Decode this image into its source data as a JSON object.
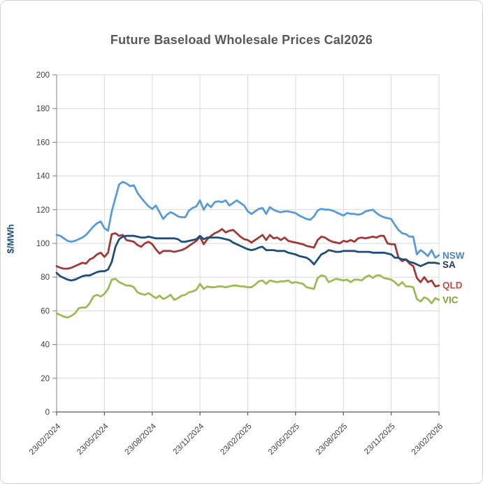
{
  "card": {
    "title": "Future Baseload Wholesale Prices Cal2026"
  },
  "y_axis": {
    "label": "$/MWh",
    "ticks": [
      0,
      20,
      40,
      60,
      80,
      100,
      120,
      140,
      160,
      180,
      200
    ]
  },
  "x_axis": {
    "tick_labels": [
      "23/02/2024",
      "23/05/2024",
      "23/08/2024",
      "23/11/2024",
      "23/02/2025",
      "23/05/2025",
      "23/08/2025",
      "23/11/2025",
      "23/02/2026"
    ],
    "tick_weeks": [
      0,
      13,
      26,
      39,
      52,
      65,
      78,
      91,
      104
    ]
  },
  "colors": {
    "grid": "#d9d9d9",
    "axis": "#808080",
    "tick_text": "#404040",
    "title_text": "#595959",
    "border": "#d9d9d9"
  },
  "chart_data": {
    "type": "line",
    "title": "Future Baseload Wholesale Prices Cal2026",
    "xlabel": "",
    "ylabel": "$/MWh",
    "ylim": [
      0,
      200
    ],
    "grid": "on",
    "legend_position": "right-end-of-line-labels",
    "x_description": "weekly data points from 23/02/2024 to 23/02/2026 (105 points)",
    "x_tick_labels": [
      "23/02/2024",
      "23/05/2024",
      "23/08/2024",
      "23/11/2024",
      "23/02/2025",
      "23/05/2025",
      "23/08/2025",
      "23/11/2025",
      "23/02/2026"
    ],
    "series": [
      {
        "name": "NSW",
        "color": "#5B9BD5",
        "label_color": "#4A86C6",
        "values": [
          105,
          104.5,
          103,
          101.5,
          101,
          101.5,
          102.5,
          103.5,
          105,
          107.5,
          110,
          112,
          113,
          109,
          107.5,
          119,
          127,
          135,
          136.5,
          135.5,
          134,
          134.5,
          130,
          127,
          124.5,
          122,
          120.5,
          122.5,
          118.5,
          114.5,
          117,
          118.5,
          117.5,
          116,
          115.5,
          115.5,
          119.5,
          121,
          122,
          125.5,
          120,
          123.5,
          121.5,
          124.5,
          125,
          124.5,
          125.5,
          122.5,
          124,
          125.5,
          124,
          122.5,
          119,
          117.5,
          119,
          120.5,
          121,
          117.5,
          121.5,
          120,
          119,
          118.5,
          119,
          119,
          118.5,
          118,
          116.5,
          115.5,
          114.5,
          114,
          116,
          119.5,
          120.5,
          120,
          120,
          119.5,
          118.5,
          117.5,
          116.5,
          118,
          117.5,
          117.5,
          117,
          117.5,
          119,
          119.5,
          120,
          118,
          116.5,
          115.5,
          115,
          114.5,
          111,
          108,
          106,
          105.5,
          104,
          104,
          93.5,
          96,
          94.5,
          92.5,
          96,
          91.5,
          93
        ]
      },
      {
        "name": "SA",
        "color": "#1F4E79",
        "label_color": "#1F3864",
        "values": [
          82.5,
          80.5,
          79.5,
          78.5,
          78,
          78.5,
          79.5,
          80.5,
          81,
          81,
          82,
          83,
          83.5,
          83.5,
          84.5,
          89,
          98,
          102.5,
          104,
          104.5,
          104.5,
          104.5,
          104,
          103.5,
          103.5,
          104,
          103.5,
          103,
          103,
          103,
          103,
          103,
          103,
          102.5,
          101,
          101,
          101.5,
          102,
          102.5,
          104.5,
          102.5,
          103.5,
          103.5,
          103.5,
          103.5,
          103,
          102.5,
          102,
          100.5,
          99.5,
          98.5,
          97.5,
          96.5,
          96,
          96.5,
          97.5,
          98,
          96,
          96,
          96,
          95.5,
          95.5,
          95.5,
          94.5,
          94,
          93.5,
          92.5,
          92,
          91.5,
          90,
          87.5,
          90.5,
          93.5,
          94.5,
          96,
          95.5,
          95,
          95,
          95.5,
          95.5,
          95.5,
          95.5,
          95,
          95,
          95,
          95,
          94.5,
          94.5,
          94.5,
          94.5,
          94,
          93.5,
          91.5,
          91.5,
          90.5,
          90.5,
          89,
          88.5,
          87.5,
          86.5,
          87.5,
          88.5,
          88.5,
          88.5,
          88
        ]
      },
      {
        "name": "QLD",
        "color": "#9E3B38",
        "label_color": "#C0504D",
        "values": [
          86.5,
          85.5,
          85,
          85,
          85.5,
          86.5,
          87.5,
          88.5,
          88,
          90.5,
          91.5,
          93.5,
          94.5,
          92,
          94.5,
          105.5,
          106,
          104.5,
          105,
          102,
          101.5,
          101,
          99,
          98,
          100,
          101,
          99.5,
          96.5,
          94,
          95.5,
          95.5,
          95.5,
          95,
          95.5,
          96,
          97,
          98.5,
          100,
          101.5,
          104,
          99.5,
          102.5,
          104.5,
          106,
          107,
          108.5,
          106.5,
          107.5,
          108,
          106,
          104,
          102.5,
          102,
          100.5,
          102,
          103.5,
          105,
          102,
          105,
          103,
          103.5,
          102,
          103.5,
          101.5,
          101,
          100.5,
          100,
          99.5,
          98.5,
          98,
          97.5,
          102,
          104,
          103.5,
          102,
          101,
          100.5,
          100,
          101.5,
          101,
          102,
          101,
          103,
          103.5,
          103,
          103.5,
          104,
          103.5,
          104.5,
          104.5,
          100,
          99.5,
          99.5,
          91.5,
          89.5,
          90.5,
          88,
          86.5,
          79.5,
          77,
          80,
          77,
          78,
          74.5,
          75
        ]
      },
      {
        "name": "VIC",
        "color": "#9CBB58",
        "label_color": "#7E9C3C",
        "values": [
          58.5,
          57.5,
          56.5,
          56,
          57,
          58.5,
          61.5,
          62,
          62,
          64.5,
          68.5,
          69.5,
          68.5,
          70,
          73,
          78.5,
          79,
          77,
          76,
          75,
          75,
          74,
          71,
          70,
          69.5,
          70.5,
          69,
          67.5,
          69,
          67,
          68,
          69.5,
          66.5,
          67.5,
          69,
          69.5,
          71,
          71.5,
          72.5,
          76,
          73,
          74.5,
          74,
          74,
          74.5,
          74.5,
          74,
          74.5,
          75,
          75,
          74.5,
          74.5,
          74,
          74,
          75.5,
          77.5,
          78,
          76,
          78,
          77.5,
          77,
          77.5,
          77.5,
          78,
          76.5,
          77,
          76.5,
          76,
          74,
          73.5,
          73,
          79.5,
          81,
          80.5,
          77,
          78,
          79,
          78.5,
          78,
          78.5,
          77,
          78.5,
          78.5,
          78,
          80,
          81,
          79.5,
          81,
          81,
          79.5,
          79,
          78.5,
          77,
          75,
          77,
          74.5,
          74.5,
          74,
          67,
          65.5,
          68,
          67,
          64.5,
          67.5,
          66.5
        ]
      }
    ]
  }
}
